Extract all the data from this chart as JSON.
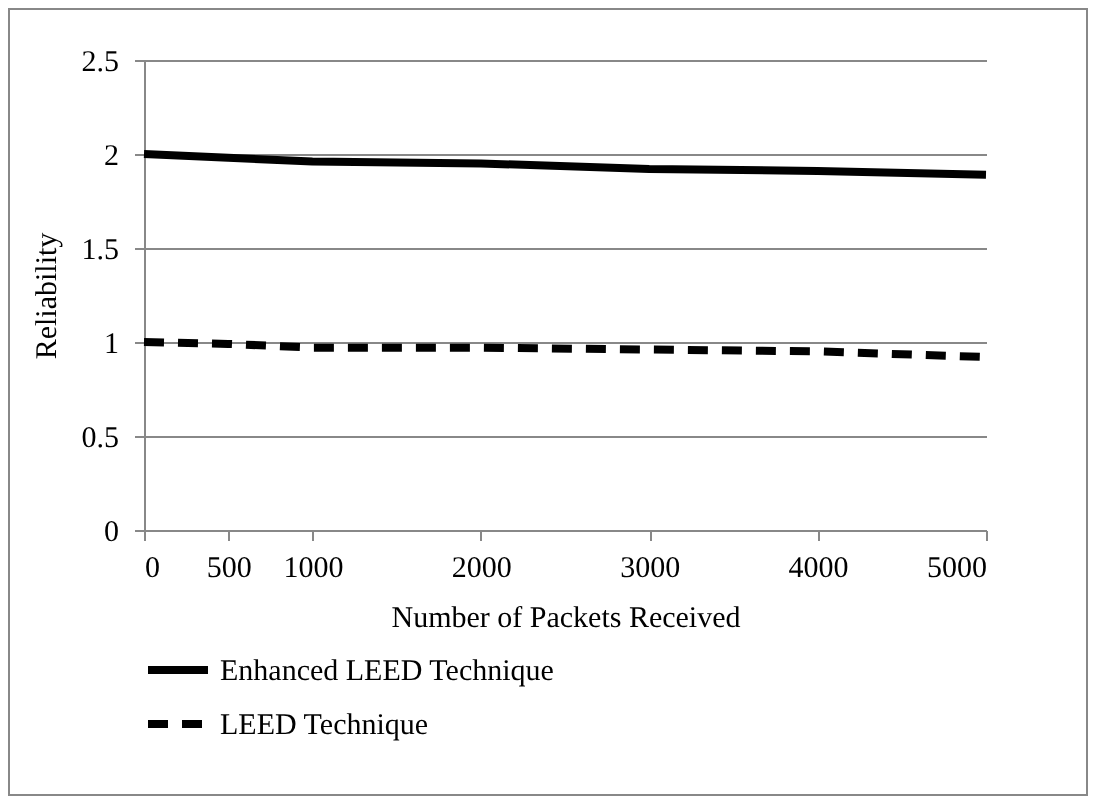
{
  "chart_data": {
    "type": "line",
    "xlabel": "Number of Packets Received",
    "ylabel": "Reliability",
    "x": [
      0,
      500,
      1000,
      2000,
      3000,
      4000,
      5000
    ],
    "series": [
      {
        "name": "Enhanced LEED Technique",
        "color": "#000000",
        "line_style": "solid",
        "values": [
          2.0,
          1.98,
          1.96,
          1.95,
          1.92,
          1.91,
          1.89
        ]
      },
      {
        "name": "LEED Technique",
        "color": "#000000",
        "line_style": "dashed",
        "values": [
          1.0,
          0.99,
          0.97,
          0.97,
          0.96,
          0.95,
          0.92
        ]
      }
    ],
    "xlim": [
      0,
      5000
    ],
    "xticks": [
      0,
      500,
      1000,
      2000,
      3000,
      4000,
      5000
    ],
    "ylim": [
      0,
      2.5
    ],
    "yticks": [
      0,
      0.5,
      1,
      1.5,
      2,
      2.5
    ],
    "grid": "y",
    "legend": "bottom left",
    "marker": "none"
  }
}
